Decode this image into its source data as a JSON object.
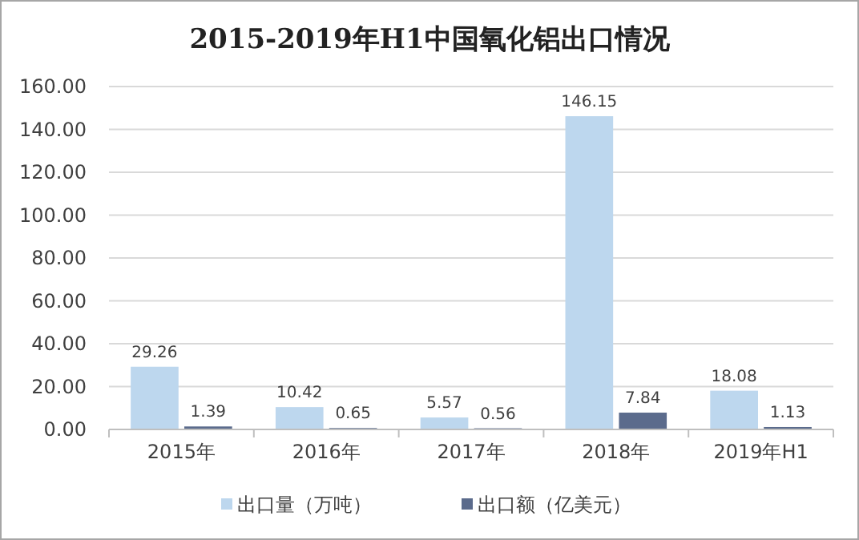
{
  "chart_data": {
    "type": "bar",
    "title": "2015-2019年H1中国氧化铝出口情况",
    "categories": [
      "2015年",
      "2016年",
      "2017年",
      "2018年",
      "2019年H1"
    ],
    "series": [
      {
        "name": "出口量（万吨）",
        "color": "#bdd7ee",
        "values": [
          29.26,
          10.42,
          5.57,
          146.15,
          18.08
        ]
      },
      {
        "name": "出口额（亿美元）",
        "color": "#5b6b8c",
        "values": [
          1.39,
          0.65,
          0.56,
          7.84,
          1.13
        ]
      }
    ],
    "ylim": [
      0,
      160
    ],
    "yticks": [
      {
        "value": 0,
        "label": "0.00"
      },
      {
        "value": 20,
        "label": "20.00"
      },
      {
        "value": 40,
        "label": "40.00"
      },
      {
        "value": 60,
        "label": "60.00"
      },
      {
        "value": 80,
        "label": "80.00"
      },
      {
        "value": 100,
        "label": "100.00"
      },
      {
        "value": 120,
        "label": "120.00"
      },
      {
        "value": 140,
        "label": "140.00"
      },
      {
        "value": 160,
        "label": "160.00"
      }
    ],
    "grid": "y",
    "legend": "bottom",
    "data_labels": true
  }
}
